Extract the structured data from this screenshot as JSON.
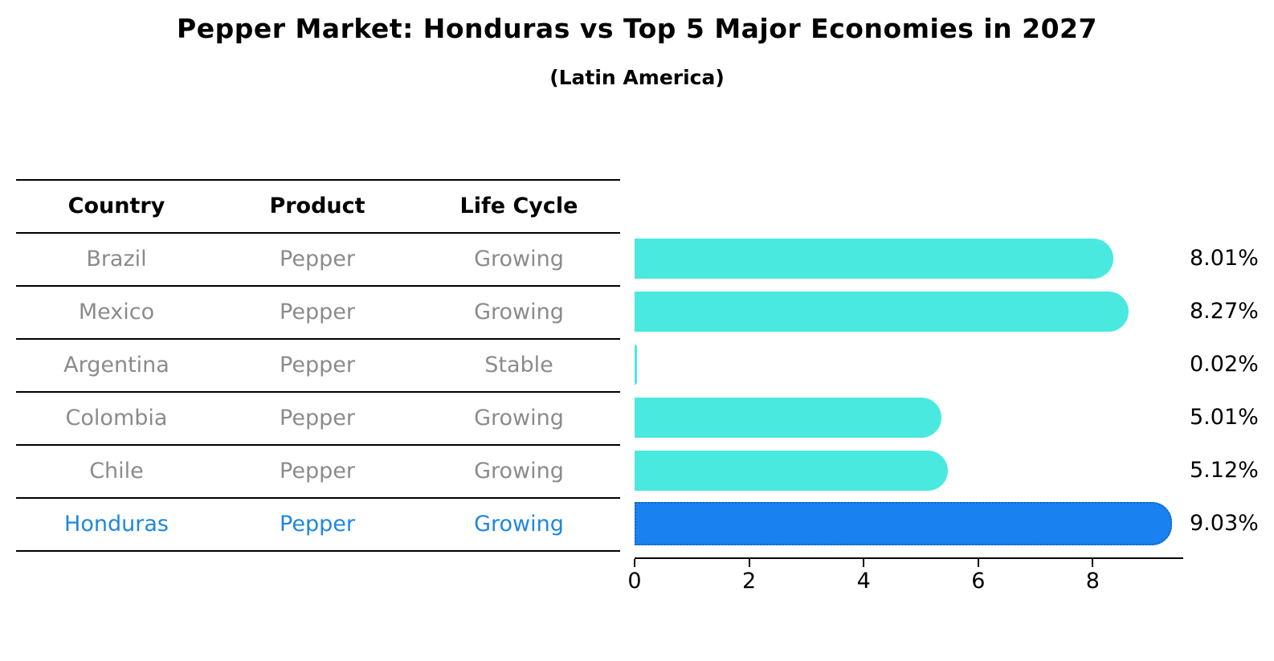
{
  "title": "Pepper Market: Honduras vs Top 5 Major Economies in 2027",
  "subtitle": "(Latin America)",
  "table": {
    "headers": [
      "Country",
      "Product",
      "Life Cycle"
    ],
    "rows": [
      {
        "country": "Brazil",
        "product": "Pepper",
        "life_cycle": "Growing"
      },
      {
        "country": "Mexico",
        "product": "Pepper",
        "life_cycle": "Growing"
      },
      {
        "country": "Argentina",
        "product": "Pepper",
        "life_cycle": "Stable"
      },
      {
        "country": "Colombia",
        "product": "Pepper",
        "life_cycle": "Growing"
      },
      {
        "country": "Chile",
        "product": "Pepper",
        "life_cycle": "Growing"
      },
      {
        "country": "Honduras",
        "product": "Pepper",
        "life_cycle": "Growing"
      }
    ],
    "highlighted_row": "Honduras"
  },
  "chart_data": {
    "type": "bar",
    "orientation": "horizontal",
    "title": "Pepper Market: Honduras vs Top 5 Major Economies in 2027",
    "subtitle": "(Latin America)",
    "categories": [
      "Brazil",
      "Mexico",
      "Argentina",
      "Colombia",
      "Chile",
      "Honduras"
    ],
    "values": [
      8.01,
      8.27,
      0.02,
      5.01,
      5.12,
      9.03
    ],
    "value_labels": [
      "8.01%",
      "8.27%",
      "0.02%",
      "5.01%",
      "5.12%",
      "9.03%"
    ],
    "highlight_category": "Honduras",
    "xlim": [
      0,
      9.5
    ],
    "x_ticks": [
      0,
      2,
      4,
      6,
      8
    ],
    "grid": false,
    "legend": false,
    "colors": {
      "bar": "#49E9E0",
      "highlight_bar": "#1A81F0",
      "highlight_border": "#1565C0",
      "highlight_text": "#1E87E0",
      "table_text": "#8B8B8B",
      "axis": "#000000"
    }
  }
}
